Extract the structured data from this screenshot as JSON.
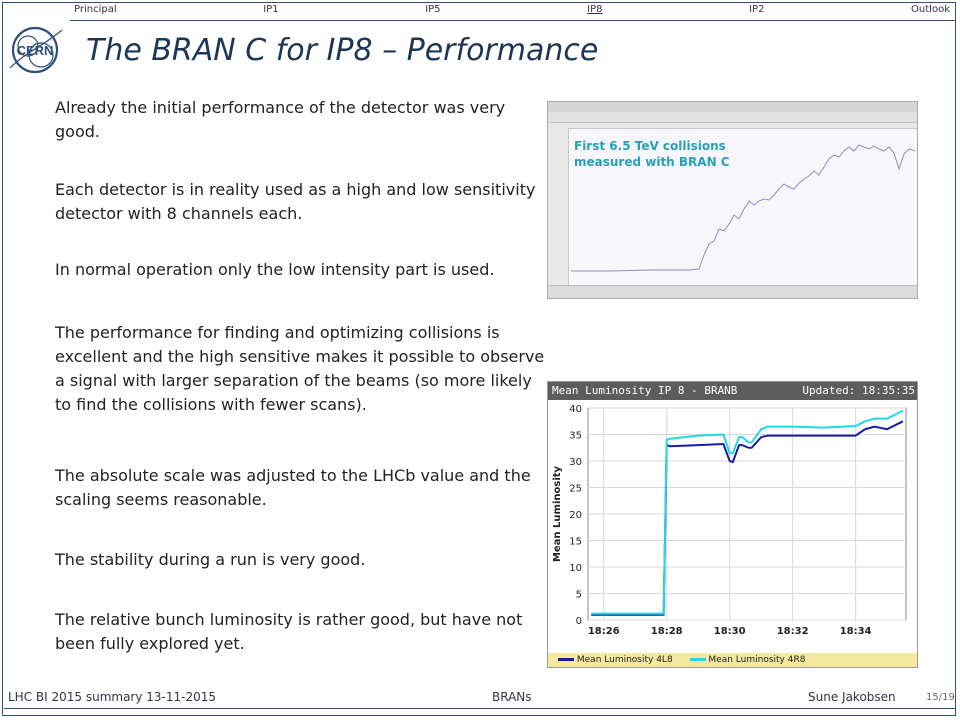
{
  "nav": {
    "items": [
      "Principal",
      "IP1",
      "IP5",
      "IP8",
      "IP2",
      "Outlook"
    ],
    "active": "IP8"
  },
  "title": "The BRAN C for IP8 – Performance",
  "paragraphs": [
    "Already the initial performance of the detector was very good.",
    "Each detector is in reality used as a high and low sensitivity detector with 8 channels each.",
    "In normal operation only the low intensity part is used.",
    "The performance for finding and optimizing collisions is excellent and the high sensitive makes it possible to observe a signal with larger separation of the beams (so more likely to find the collisions with fewer scans).",
    "The absolute scale was adjusted to the LHCb value and the scaling seems reasonable.",
    "The stability during a run is very good.",
    "The relative bunch luminosity is rather good, but have not been fully explored yet."
  ],
  "screenshot1": {
    "caption_line1": "First 6.5 TeV collisions",
    "caption_line2": "measured with BRAN C"
  },
  "chart_data": {
    "type": "line",
    "title": "Mean Luminosity IP 8 - BRANB",
    "updated": "Updated: 18:35:35",
    "ylabel": "Mean Luminosity",
    "xlabel": "",
    "ylim": [
      0,
      40
    ],
    "yticks": [
      0,
      5,
      10,
      15,
      20,
      25,
      30,
      35,
      40
    ],
    "xticks": [
      "18:26",
      "18:28",
      "18:30",
      "18:32",
      "18:34"
    ],
    "x_minutes": [
      25.6,
      26,
      27,
      27.8,
      27.9,
      28.0,
      28.1,
      29,
      29.8,
      30,
      30.1,
      30.3,
      30.4,
      30.6,
      30.7,
      31,
      31.2,
      32,
      33,
      34,
      34.3,
      34.6,
      35,
      35.5
    ],
    "series": [
      {
        "name": "Mean Luminosity 4L8",
        "color": "#1a1aa8",
        "values": [
          1,
          1,
          1,
          1,
          1,
          33,
          32.8,
          33,
          33.2,
          30,
          29.8,
          33,
          33,
          32.5,
          32.5,
          34.5,
          34.8,
          34.8,
          34.8,
          34.8,
          36,
          36.5,
          36,
          37.5
        ]
      },
      {
        "name": "Mean Luminosity 4R8",
        "color": "#22d8e6",
        "values": [
          1.2,
          1.2,
          1.2,
          1.2,
          1.2,
          34,
          34.2,
          34.8,
          35,
          31.5,
          31.5,
          34.5,
          34.5,
          33.5,
          33.5,
          36,
          36.5,
          36.5,
          36.3,
          36.6,
          37.5,
          38,
          38,
          39.5
        ]
      }
    ]
  },
  "footer": {
    "left": "LHC BI 2015 summary 13-11-2015",
    "middle": "BRANs",
    "right": "Sune Jakobsen",
    "page": "15/19"
  }
}
